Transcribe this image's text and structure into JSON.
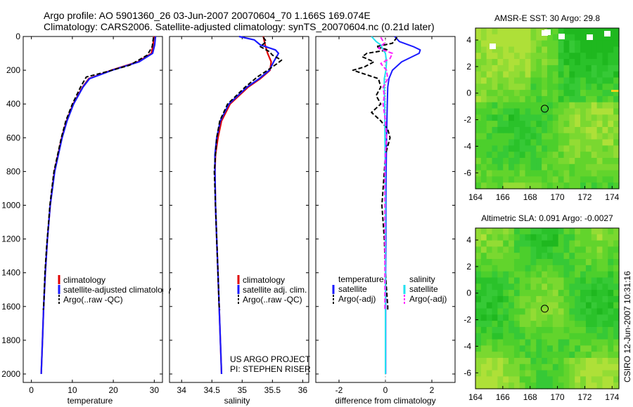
{
  "figure": {
    "title_line1": "Argo profile: AO 5901360_26 03-Jun-2007 20070604_70 1.166S 169.074E",
    "title_line2": "Climatology: CARS2006. Satellite-adjusted climatology: synTS_20070604.nc (0.21d later)",
    "side_label": "CSIRO 12-Jun-2007 10:31:16",
    "credit_line1": "US ARGO PROJECT",
    "credit_line2": "PI: STEPHEN RISER"
  },
  "colors": {
    "climatology": "#e00000",
    "satellite": "#1a1aff",
    "argo": "#000000",
    "satellite_sal": "#22e0f0",
    "argo_sal": "#ff22ff",
    "map_green": "#22c022",
    "map_light": "#9ee23a"
  },
  "legends": {
    "temperature": [
      "climatology",
      "satellite-adjusted climatology",
      "Argo(..raw -QC)"
    ],
    "salinity": [
      "climatology",
      "satellite adj. clim.",
      "Argo(..raw -QC)"
    ],
    "difference": {
      "temp_header": "temperature",
      "sal_header": "salinity",
      "temp_items": [
        "satellite",
        "Argo(-adj)"
      ],
      "sal_items": [
        "satellite",
        "Argo(-adj)"
      ]
    }
  },
  "chart_data": [
    {
      "type": "line",
      "id": "temperature",
      "xlabel": "temperature",
      "ylabel": "",
      "xlim": [
        -2,
        32
      ],
      "ylim": [
        2050,
        0
      ],
      "xticks": [
        0,
        10,
        20,
        30
      ],
      "xtick_labels": [
        "0",
        "10",
        "20",
        "30"
      ],
      "yticks": [
        0,
        200,
        400,
        600,
        800,
        1000,
        1200,
        1400,
        1600,
        1800,
        2000
      ],
      "ytick_labels": [
        "0",
        "200",
        "400",
        "600",
        "800",
        "1000",
        "1200",
        "1400",
        "1600",
        "1800",
        "2000"
      ],
      "series": [
        {
          "name": "climatology",
          "depth": [
            0,
            50,
            100,
            150,
            200,
            250,
            300,
            400,
            500,
            600,
            800,
            1000,
            1200,
            1400,
            1600,
            1800,
            2000
          ],
          "values": [
            29.9,
            29.7,
            29.3,
            26.0,
            19.5,
            14.0,
            12.5,
            10.2,
            8.6,
            7.4,
            5.6,
            4.6,
            3.9,
            3.4,
            3.0,
            2.7,
            2.4
          ]
        },
        {
          "name": "satellite",
          "depth": [
            0,
            50,
            100,
            150,
            200,
            250,
            300,
            400,
            500,
            600,
            800,
            1000,
            1200,
            1400,
            1600,
            1800,
            2000
          ],
          "values": [
            30.3,
            30.1,
            29.6,
            26.3,
            19.7,
            14.2,
            12.6,
            10.3,
            8.7,
            7.5,
            5.7,
            4.6,
            3.9,
            3.4,
            3.0,
            2.7,
            2.4
          ]
        },
        {
          "name": "Argo",
          "depth": [
            5,
            60,
            110,
            170,
            210,
            240,
            300,
            400,
            500,
            600,
            800,
            1000,
            1100,
            1250,
            1400,
            1600,
            1620
          ],
          "values": [
            29.8,
            29.5,
            28.3,
            24.0,
            18.2,
            13.4,
            12.0,
            10.0,
            8.4,
            7.3,
            5.5,
            4.5,
            4.2,
            3.7,
            3.3,
            3.0,
            2.9
          ]
        }
      ]
    },
    {
      "type": "line",
      "id": "salinity",
      "xlabel": "salinity",
      "ylabel": "",
      "xlim": [
        33.8,
        36.1
      ],
      "ylim": [
        2050,
        0
      ],
      "xticks": [
        34,
        34.5,
        35,
        35.5,
        36
      ],
      "xtick_labels": [
        "34",
        "34.5",
        "35",
        "35.5",
        "36"
      ],
      "yticks": [],
      "ytick_labels": [],
      "series": [
        {
          "name": "climatology",
          "depth": [
            0,
            50,
            100,
            150,
            200,
            250,
            300,
            400,
            500,
            600,
            700,
            800,
            1000,
            1200,
            1400,
            1600,
            1800,
            2000
          ],
          "values": [
            35.35,
            35.38,
            35.42,
            35.48,
            35.46,
            35.3,
            35.1,
            34.8,
            34.66,
            34.6,
            34.56,
            34.55,
            34.56,
            34.58,
            34.6,
            34.62,
            34.64,
            34.66
          ]
        },
        {
          "name": "satellite",
          "depth": [
            0,
            20,
            50,
            80,
            100,
            150,
            200,
            250,
            300,
            400,
            500,
            600,
            700,
            800,
            1000,
            1200,
            1400,
            1600,
            1800,
            2000
          ],
          "values": [
            34.95,
            35.2,
            35.3,
            35.55,
            35.6,
            35.52,
            35.45,
            35.28,
            35.08,
            34.78,
            34.64,
            34.58,
            34.55,
            34.55,
            34.56,
            34.58,
            34.6,
            34.62,
            34.64,
            34.66
          ]
        },
        {
          "name": "Argo",
          "depth": [
            5,
            30,
            60,
            90,
            110,
            140,
            160,
            180,
            200,
            240,
            300,
            400,
            500,
            600,
            800,
            1000,
            1200,
            1400,
            1600,
            1620
          ],
          "values": [
            35.35,
            35.4,
            35.3,
            35.45,
            35.5,
            35.65,
            35.58,
            35.5,
            35.42,
            35.25,
            35.05,
            34.76,
            34.63,
            34.58,
            34.54,
            34.56,
            34.58,
            34.6,
            34.62,
            34.63
          ]
        }
      ]
    },
    {
      "type": "line",
      "id": "difference",
      "xlabel": "difference from climatology",
      "ylabel": "",
      "xlim": [
        -3,
        3
      ],
      "ylim": [
        2050,
        0
      ],
      "xticks": [
        -2,
        0,
        2
      ],
      "xtick_labels": [
        "-2",
        "0",
        "2"
      ],
      "yticks": [],
      "ytick_labels": [],
      "series": [
        {
          "name": "satellite temperature",
          "depth": [
            0,
            30,
            60,
            80,
            100,
            150,
            200,
            250,
            300,
            400,
            600,
            800,
            1000,
            1200,
            1400,
            1600,
            1800,
            2000
          ],
          "values": [
            0.4,
            0.6,
            1.2,
            1.5,
            1.45,
            0.7,
            0.3,
            0.15,
            0.1,
            0.08,
            0.05,
            0.03,
            0.02,
            0.02,
            0.01,
            0.01,
            0.01,
            0.01
          ]
        },
        {
          "name": "Argo(-adj) temperature",
          "depth": [
            5,
            40,
            60,
            80,
            100,
            120,
            150,
            180,
            200,
            250,
            300,
            350,
            400,
            450,
            500,
            550,
            600,
            650,
            700,
            800,
            900,
            1000,
            1100,
            1200,
            1400,
            1500,
            1600,
            1620
          ],
          "values": [
            0.5,
            0.3,
            -0.4,
            0.1,
            -0.8,
            -1.0,
            -0.5,
            -0.9,
            -1.4,
            -0.3,
            -0.2,
            -0.4,
            -0.2,
            -0.6,
            -0.2,
            0.1,
            0.2,
            0.1,
            0.0,
            -0.05,
            -0.1,
            -0.15,
            -0.1,
            -0.05,
            0.0,
            0.05,
            0.1,
            0.1
          ]
        },
        {
          "name": "satellite salinity",
          "depth": [
            0,
            30,
            50,
            80,
            100,
            150,
            200,
            250,
            300,
            400,
            600,
            800,
            1000,
            1200,
            1400,
            1600,
            1800,
            2000
          ],
          "values": [
            -0.6,
            -0.4,
            -0.2,
            -0.1,
            0.0,
            0.05,
            0.02,
            -0.05,
            -0.05,
            -0.03,
            -0.02,
            -0.01,
            0.0,
            0.0,
            0.0,
            0.0,
            0.0,
            0.0
          ]
        },
        {
          "name": "Argo(-adj) salinity",
          "depth": [
            5,
            40,
            70,
            100,
            130,
            160,
            200,
            250,
            300,
            350,
            400,
            500,
            600,
            700,
            800,
            1000,
            1200,
            1400,
            1600,
            1620
          ],
          "values": [
            -0.2,
            -0.05,
            -0.3,
            0.3,
            0.2,
            -0.2,
            0.05,
            0.1,
            -0.1,
            -0.05,
            -0.1,
            0.0,
            0.05,
            0.0,
            -0.02,
            -0.02,
            -0.02,
            -0.02,
            -0.02,
            -0.02
          ]
        }
      ]
    },
    {
      "type": "heatmap",
      "id": "sst_map",
      "title": "AMSR-E SST: 30 Argo: 29.8",
      "xlim": [
        164,
        174.5
      ],
      "ylim": [
        -7.2,
        4.9
      ],
      "xticks": [
        164,
        166,
        168,
        170,
        172,
        174
      ],
      "yticks": [
        -6,
        -4,
        -2,
        0,
        2,
        4
      ],
      "xtick_labels": [
        "164",
        "166",
        "168",
        "170",
        "172",
        "174"
      ],
      "ytick_labels": [
        "-6",
        "-4",
        "-2",
        "0",
        "2",
        "4"
      ],
      "marker": [
        169.07,
        -1.17
      ]
    },
    {
      "type": "heatmap",
      "id": "sla_map",
      "title": "Altimetric SLA: 0.091 Argo: -0.0027",
      "xlim": [
        164,
        174.5
      ],
      "ylim": [
        -7.2,
        4.9
      ],
      "xticks": [
        164,
        166,
        168,
        170,
        172,
        174
      ],
      "yticks": [
        -6,
        -4,
        -2,
        0,
        2,
        4
      ],
      "xtick_labels": [
        "164",
        "166",
        "168",
        "170",
        "172",
        "174"
      ],
      "ytick_labels": [
        "-6",
        "-4",
        "-2",
        "0",
        "2",
        "4"
      ],
      "marker": [
        169.07,
        -1.17
      ]
    }
  ]
}
